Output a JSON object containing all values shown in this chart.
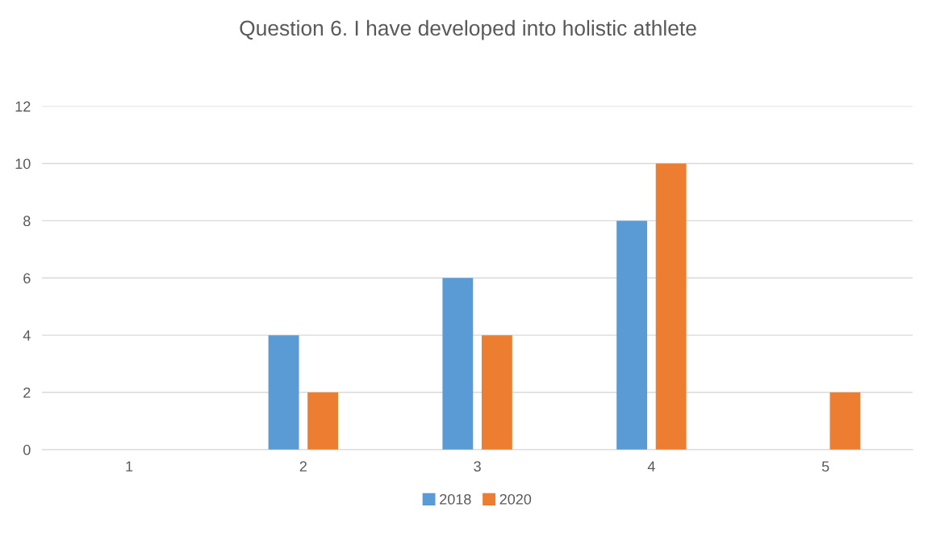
{
  "chart_data": {
    "type": "bar",
    "title": "Question 6. I have developed into holistic athlete",
    "categories": [
      "1",
      "2",
      "3",
      "4",
      "5"
    ],
    "series": [
      {
        "name": "2018",
        "color": "#5b9bd5",
        "values": [
          0,
          4,
          6,
          8,
          0
        ]
      },
      {
        "name": "2020",
        "color": "#ed7d31",
        "values": [
          0,
          2,
          4,
          10,
          2
        ]
      }
    ],
    "ylim": [
      0,
      12
    ],
    "yticks": [
      0,
      2,
      4,
      6,
      8,
      10,
      12
    ],
    "grid": "y",
    "legend": "bottom"
  }
}
